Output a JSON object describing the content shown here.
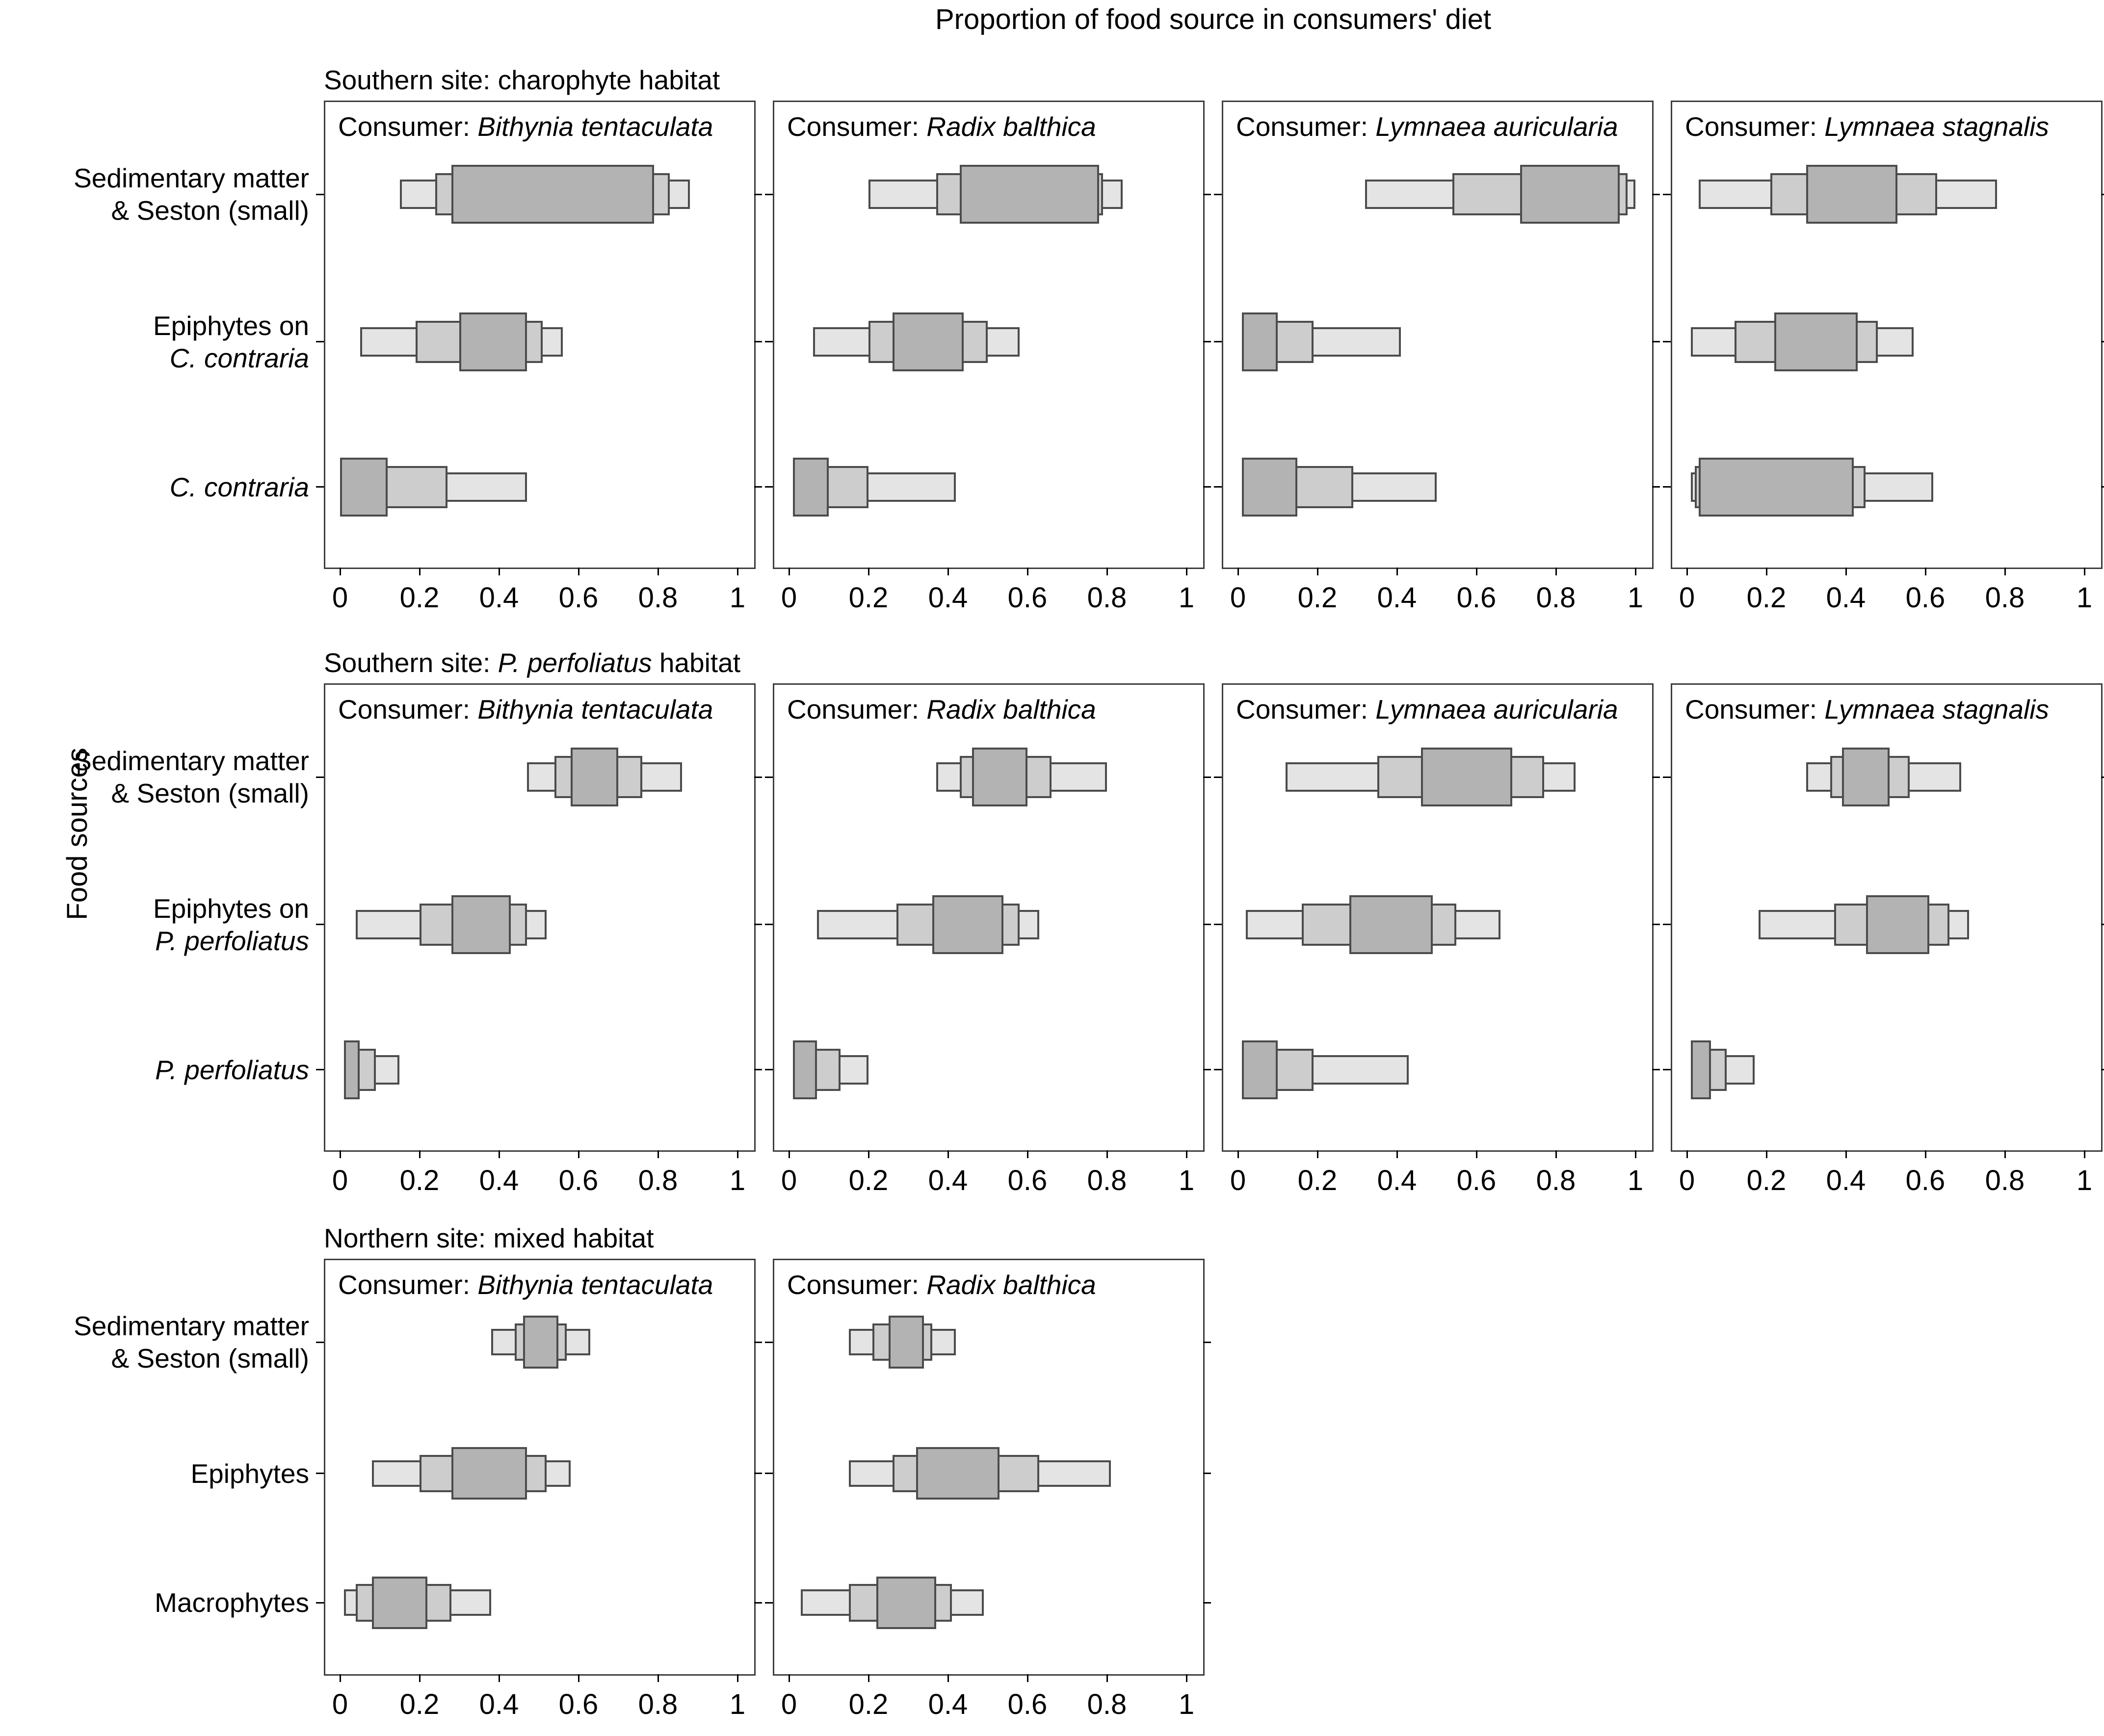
{
  "title": "Proportion of food source in consumers' diet",
  "y_axis_label": "Food sources",
  "colors": {
    "outer_interval": "#e4e4e4",
    "mid_interval": "#cdcdcd",
    "inner_interval": "#b3b3b3",
    "box_stroke": "#4c4c4c",
    "panel_border": "#3d3d3d",
    "text": "#000000"
  },
  "chart_data": {
    "type": "interval-boxplot",
    "orientation": "horizontal",
    "x_range": [
      0,
      1
    ],
    "x_tick_values": [
      0,
      0.2,
      0.4,
      0.6,
      0.8,
      1
    ],
    "x_tick_labels": [
      "0",
      "0.2",
      "0.4",
      "0.6",
      "0.8",
      "1"
    ],
    "interval_levels": [
      "outer (lightest, widest)",
      "mid",
      "inner (darkest, narrowest)"
    ],
    "row_groups": [
      {
        "header": [
          {
            "text": "Southern site: charophyte habitat",
            "italic": false
          }
        ],
        "food_sources": [
          {
            "lines": [
              [
                {
                  "text": "Sedimentary matter",
                  "italic": false
                }
              ],
              [
                {
                  "text": "& Seston (small)",
                  "italic": false
                }
              ]
            ]
          },
          {
            "lines": [
              [
                {
                  "text": "Epiphytes on",
                  "italic": false
                }
              ],
              [
                {
                  "text": "C. contraria",
                  "italic": true
                }
              ]
            ]
          },
          {
            "lines": [
              [
                {
                  "text": "C. contraria",
                  "italic": true
                }
              ]
            ]
          }
        ],
        "panels": [
          {
            "consumer_prefix": "Consumer: ",
            "consumer": "Bithynia tentaculata",
            "boxes": [
              {
                "outer": [
                  0.15,
                  0.88
                ],
                "mid": [
                  0.24,
                  0.83
                ],
                "inner": [
                  0.28,
                  0.79
                ]
              },
              {
                "outer": [
                  0.05,
                  0.56
                ],
                "mid": [
                  0.19,
                  0.51
                ],
                "inner": [
                  0.3,
                  0.47
                ]
              },
              {
                "outer": [
                  0.0,
                  0.47
                ],
                "mid": [
                  0.0,
                  0.27
                ],
                "inner": [
                  0.0,
                  0.12
                ]
              }
            ]
          },
          {
            "consumer_prefix": "Consumer: ",
            "consumer": "Radix balthica",
            "boxes": [
              {
                "outer": [
                  0.2,
                  0.84
                ],
                "mid": [
                  0.37,
                  0.79
                ],
                "inner": [
                  0.43,
                  0.78
                ]
              },
              {
                "outer": [
                  0.06,
                  0.58
                ],
                "mid": [
                  0.2,
                  0.5
                ],
                "inner": [
                  0.26,
                  0.44
                ]
              },
              {
                "outer": [
                  0.01,
                  0.42
                ],
                "mid": [
                  0.01,
                  0.2
                ],
                "inner": [
                  0.01,
                  0.1
                ]
              }
            ]
          },
          {
            "consumer_prefix": "Consumer: ",
            "consumer": "Lymnaea auricularia",
            "boxes": [
              {
                "outer": [
                  0.32,
                  1.0
                ],
                "mid": [
                  0.54,
                  0.98
                ],
                "inner": [
                  0.71,
                  0.96
                ]
              },
              {
                "outer": [
                  0.01,
                  0.41
                ],
                "mid": [
                  0.01,
                  0.19
                ],
                "inner": [
                  0.01,
                  0.1
                ]
              },
              {
                "outer": [
                  0.01,
                  0.5
                ],
                "mid": [
                  0.01,
                  0.29
                ],
                "inner": [
                  0.01,
                  0.15
                ]
              }
            ]
          },
          {
            "consumer_prefix": "Consumer: ",
            "consumer": "Lymnaea stagnalis",
            "boxes": [
              {
                "outer": [
                  0.03,
                  0.78
                ],
                "mid": [
                  0.21,
                  0.63
                ],
                "inner": [
                  0.3,
                  0.53
                ]
              },
              {
                "outer": [
                  0.01,
                  0.57
                ],
                "mid": [
                  0.12,
                  0.48
                ],
                "inner": [
                  0.22,
                  0.43
                ]
              },
              {
                "outer": [
                  0.01,
                  0.62
                ],
                "mid": [
                  0.02,
                  0.45
                ],
                "inner": [
                  0.03,
                  0.42
                ]
              }
            ]
          }
        ]
      },
      {
        "header": [
          {
            "text": "Southern site: ",
            "italic": false
          },
          {
            "text": "P. perfoliatus",
            "italic": true
          },
          {
            "text": " habitat",
            "italic": false
          }
        ],
        "food_sources": [
          {
            "lines": [
              [
                {
                  "text": "Sedimentary matter",
                  "italic": false
                }
              ],
              [
                {
                  "text": "& Seston (small)",
                  "italic": false
                }
              ]
            ]
          },
          {
            "lines": [
              [
                {
                  "text": "Epiphytes on",
                  "italic": false
                }
              ],
              [
                {
                  "text": "P. perfoliatus",
                  "italic": true
                }
              ]
            ]
          },
          {
            "lines": [
              [
                {
                  "text": "P. perfoliatus",
                  "italic": true
                }
              ]
            ]
          }
        ],
        "panels": [
          {
            "consumer_prefix": "Consumer: ",
            "consumer": "Bithynia tentaculata",
            "boxes": [
              {
                "outer": [
                  0.47,
                  0.86
                ],
                "mid": [
                  0.54,
                  0.76
                ],
                "inner": [
                  0.58,
                  0.7
                ]
              },
              {
                "outer": [
                  0.04,
                  0.52
                ],
                "mid": [
                  0.2,
                  0.47
                ],
                "inner": [
                  0.28,
                  0.43
                ]
              },
              {
                "outer": [
                  0.01,
                  0.15
                ],
                "mid": [
                  0.01,
                  0.09
                ],
                "inner": [
                  0.01,
                  0.05
                ]
              }
            ]
          },
          {
            "consumer_prefix": "Consumer: ",
            "consumer": "Radix balthica",
            "boxes": [
              {
                "outer": [
                  0.37,
                  0.8
                ],
                "mid": [
                  0.43,
                  0.66
                ],
                "inner": [
                  0.46,
                  0.6
                ]
              },
              {
                "outer": [
                  0.07,
                  0.63
                ],
                "mid": [
                  0.27,
                  0.58
                ],
                "inner": [
                  0.36,
                  0.54
                ]
              },
              {
                "outer": [
                  0.01,
                  0.2
                ],
                "mid": [
                  0.01,
                  0.13
                ],
                "inner": [
                  0.01,
                  0.07
                ]
              }
            ]
          },
          {
            "consumer_prefix": "Consumer: ",
            "consumer": "Lymnaea auricularia",
            "boxes": [
              {
                "outer": [
                  0.12,
                  0.85
                ],
                "mid": [
                  0.35,
                  0.77
                ],
                "inner": [
                  0.46,
                  0.69
                ]
              },
              {
                "outer": [
                  0.02,
                  0.66
                ],
                "mid": [
                  0.16,
                  0.55
                ],
                "inner": [
                  0.28,
                  0.49
                ]
              },
              {
                "outer": [
                  0.01,
                  0.43
                ],
                "mid": [
                  0.01,
                  0.19
                ],
                "inner": [
                  0.01,
                  0.1
                ]
              }
            ]
          },
          {
            "consumer_prefix": "Consumer: ",
            "consumer": "Lymnaea stagnalis",
            "boxes": [
              {
                "outer": [
                  0.3,
                  0.69
                ],
                "mid": [
                  0.36,
                  0.56
                ],
                "inner": [
                  0.39,
                  0.51
                ]
              },
              {
                "outer": [
                  0.18,
                  0.71
                ],
                "mid": [
                  0.37,
                  0.66
                ],
                "inner": [
                  0.45,
                  0.61
                ]
              },
              {
                "outer": [
                  0.01,
                  0.17
                ],
                "mid": [
                  0.01,
                  0.1
                ],
                "inner": [
                  0.01,
                  0.06
                ]
              }
            ]
          }
        ]
      },
      {
        "header": [
          {
            "text": "Northern site: mixed habitat",
            "italic": false
          }
        ],
        "food_sources": [
          {
            "lines": [
              [
                {
                  "text": "Sedimentary matter",
                  "italic": false
                }
              ],
              [
                {
                  "text": "& Seston (small)",
                  "italic": false
                }
              ]
            ]
          },
          {
            "lines": [
              [
                {
                  "text": "Epiphytes",
                  "italic": false
                }
              ]
            ]
          },
          {
            "lines": [
              [
                {
                  "text": "Macrophytes",
                  "italic": false
                }
              ]
            ]
          }
        ],
        "panels": [
          {
            "consumer_prefix": "Consumer: ",
            "consumer": "Bithynia tentaculata",
            "boxes": [
              {
                "outer": [
                  0.38,
                  0.63
                ],
                "mid": [
                  0.44,
                  0.57
                ],
                "inner": [
                  0.46,
                  0.55
                ]
              },
              {
                "outer": [
                  0.08,
                  0.58
                ],
                "mid": [
                  0.2,
                  0.52
                ],
                "inner": [
                  0.28,
                  0.47
                ]
              },
              {
                "outer": [
                  0.01,
                  0.38
                ],
                "mid": [
                  0.04,
                  0.28
                ],
                "inner": [
                  0.08,
                  0.22
                ]
              }
            ]
          },
          {
            "consumer_prefix": "Consumer: ",
            "consumer": "Radix balthica",
            "boxes": [
              {
                "outer": [
                  0.15,
                  0.42
                ],
                "mid": [
                  0.21,
                  0.36
                ],
                "inner": [
                  0.25,
                  0.34
                ]
              },
              {
                "outer": [
                  0.15,
                  0.81
                ],
                "mid": [
                  0.26,
                  0.63
                ],
                "inner": [
                  0.32,
                  0.53
                ]
              },
              {
                "outer": [
                  0.03,
                  0.49
                ],
                "mid": [
                  0.15,
                  0.41
                ],
                "inner": [
                  0.22,
                  0.37
                ]
              }
            ]
          }
        ]
      }
    ]
  }
}
